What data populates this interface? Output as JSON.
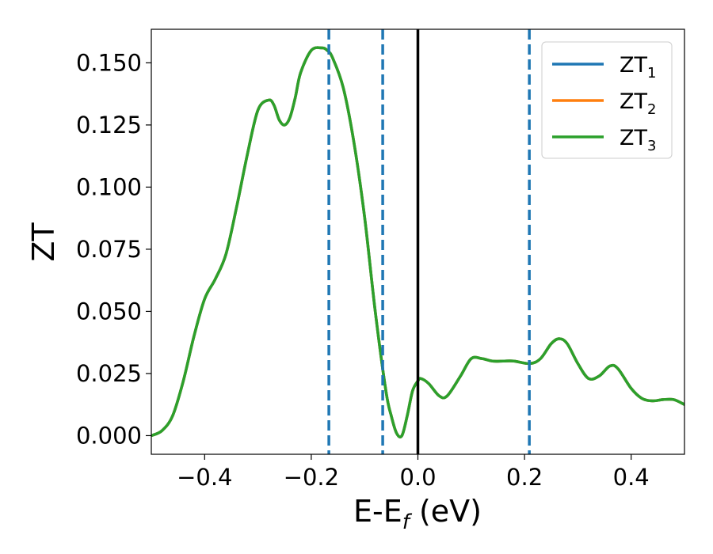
{
  "chart_data": {
    "type": "line",
    "xlabel": {
      "main": "E-E",
      "sub": "f",
      "suffix": " (eV)"
    },
    "ylabel": "ZT",
    "xlim": [
      -0.5,
      0.5
    ],
    "ylim": [
      -0.0075,
      0.1635
    ],
    "xticks": [
      -0.4,
      -0.2,
      0.0,
      0.2,
      0.4
    ],
    "xtick_labels": [
      "−0.4",
      "−0.2",
      "0.0",
      "0.2",
      "0.4"
    ],
    "yticks": [
      0.0,
      0.025,
      0.05,
      0.075,
      0.1,
      0.125,
      0.15
    ],
    "ytick_labels": [
      "0.000",
      "0.025",
      "0.050",
      "0.075",
      "0.100",
      "0.125",
      "0.150"
    ],
    "grid": false,
    "legend_position": "top-right",
    "fermi_line": {
      "x": 0.0,
      "color": "#000000"
    },
    "dashed_lines": {
      "x": [
        -0.167,
        -0.066,
        0.209
      ],
      "color": "#1f77b4"
    },
    "series": [
      {
        "name": "ZT",
        "sub": "1",
        "color": "#1f77b4",
        "x": [
          -0.5,
          -0.48,
          -0.46,
          -0.44,
          -0.42,
          -0.4,
          -0.38,
          -0.36,
          -0.34,
          -0.32,
          -0.3,
          -0.28,
          -0.27,
          -0.26,
          -0.25,
          -0.24,
          -0.23,
          -0.22,
          -0.2,
          -0.18,
          -0.17,
          -0.16,
          -0.14,
          -0.12,
          -0.1,
          -0.08,
          -0.06,
          -0.05,
          -0.04,
          -0.03,
          -0.02,
          -0.01,
          0.0,
          0.005,
          0.02,
          0.04,
          0.055,
          0.08,
          0.1,
          0.12,
          0.14,
          0.16,
          0.18,
          0.21,
          0.23,
          0.25,
          0.265,
          0.28,
          0.3,
          0.32,
          0.34,
          0.36,
          0.375,
          0.4,
          0.42,
          0.44,
          0.46,
          0.48,
          0.5
        ],
        "y": [
          0.0,
          0.002,
          0.008,
          0.022,
          0.04,
          0.055,
          0.063,
          0.073,
          0.092,
          0.113,
          0.131,
          0.135,
          0.133,
          0.127,
          0.125,
          0.128,
          0.136,
          0.146,
          0.155,
          0.156,
          0.155,
          0.152,
          0.14,
          0.118,
          0.088,
          0.05,
          0.018,
          0.008,
          0.001,
          0.0,
          0.008,
          0.018,
          0.022,
          0.023,
          0.021,
          0.016,
          0.016,
          0.024,
          0.031,
          0.031,
          0.03,
          0.03,
          0.03,
          0.029,
          0.031,
          0.037,
          0.039,
          0.037,
          0.029,
          0.023,
          0.024,
          0.028,
          0.027,
          0.019,
          0.015,
          0.014,
          0.0145,
          0.0145,
          0.0125
        ]
      },
      {
        "name": "ZT",
        "sub": "2",
        "color": "#ff7f0e",
        "x": [
          -0.5,
          -0.48,
          -0.46,
          -0.44,
          -0.42,
          -0.4,
          -0.38,
          -0.36,
          -0.34,
          -0.32,
          -0.3,
          -0.28,
          -0.27,
          -0.26,
          -0.25,
          -0.24,
          -0.23,
          -0.22,
          -0.2,
          -0.18,
          -0.17,
          -0.16,
          -0.14,
          -0.12,
          -0.1,
          -0.08,
          -0.06,
          -0.05,
          -0.04,
          -0.03,
          -0.02,
          -0.01,
          0.0,
          0.005,
          0.02,
          0.04,
          0.055,
          0.08,
          0.1,
          0.12,
          0.14,
          0.16,
          0.18,
          0.21,
          0.23,
          0.25,
          0.265,
          0.28,
          0.3,
          0.32,
          0.34,
          0.36,
          0.375,
          0.4,
          0.42,
          0.44,
          0.46,
          0.48,
          0.5
        ],
        "y": [
          0.0,
          0.002,
          0.008,
          0.022,
          0.04,
          0.055,
          0.063,
          0.073,
          0.092,
          0.113,
          0.131,
          0.135,
          0.133,
          0.127,
          0.125,
          0.128,
          0.136,
          0.146,
          0.155,
          0.156,
          0.155,
          0.152,
          0.14,
          0.118,
          0.088,
          0.05,
          0.018,
          0.008,
          0.001,
          0.0,
          0.008,
          0.018,
          0.022,
          0.023,
          0.021,
          0.016,
          0.016,
          0.024,
          0.031,
          0.031,
          0.03,
          0.03,
          0.03,
          0.029,
          0.031,
          0.037,
          0.039,
          0.037,
          0.029,
          0.023,
          0.024,
          0.028,
          0.027,
          0.019,
          0.015,
          0.014,
          0.0145,
          0.0145,
          0.0125
        ]
      },
      {
        "name": "ZT",
        "sub": "3",
        "color": "#2ca02c",
        "x": [
          -0.5,
          -0.48,
          -0.46,
          -0.44,
          -0.42,
          -0.4,
          -0.38,
          -0.36,
          -0.34,
          -0.32,
          -0.3,
          -0.28,
          -0.27,
          -0.26,
          -0.25,
          -0.24,
          -0.23,
          -0.22,
          -0.2,
          -0.18,
          -0.17,
          -0.16,
          -0.14,
          -0.12,
          -0.1,
          -0.08,
          -0.06,
          -0.05,
          -0.04,
          -0.03,
          -0.02,
          -0.01,
          0.0,
          0.005,
          0.02,
          0.04,
          0.055,
          0.08,
          0.1,
          0.12,
          0.14,
          0.16,
          0.18,
          0.21,
          0.23,
          0.25,
          0.265,
          0.28,
          0.3,
          0.32,
          0.34,
          0.36,
          0.375,
          0.4,
          0.42,
          0.44,
          0.46,
          0.48,
          0.5
        ],
        "y": [
          0.0,
          0.002,
          0.008,
          0.022,
          0.04,
          0.055,
          0.063,
          0.073,
          0.092,
          0.113,
          0.131,
          0.135,
          0.133,
          0.127,
          0.125,
          0.128,
          0.136,
          0.146,
          0.155,
          0.156,
          0.155,
          0.152,
          0.14,
          0.118,
          0.088,
          0.05,
          0.018,
          0.008,
          0.001,
          0.0,
          0.008,
          0.018,
          0.022,
          0.023,
          0.021,
          0.016,
          0.016,
          0.024,
          0.031,
          0.031,
          0.03,
          0.03,
          0.03,
          0.029,
          0.031,
          0.037,
          0.039,
          0.037,
          0.029,
          0.023,
          0.024,
          0.028,
          0.027,
          0.019,
          0.015,
          0.014,
          0.0145,
          0.0145,
          0.0125
        ]
      }
    ]
  }
}
